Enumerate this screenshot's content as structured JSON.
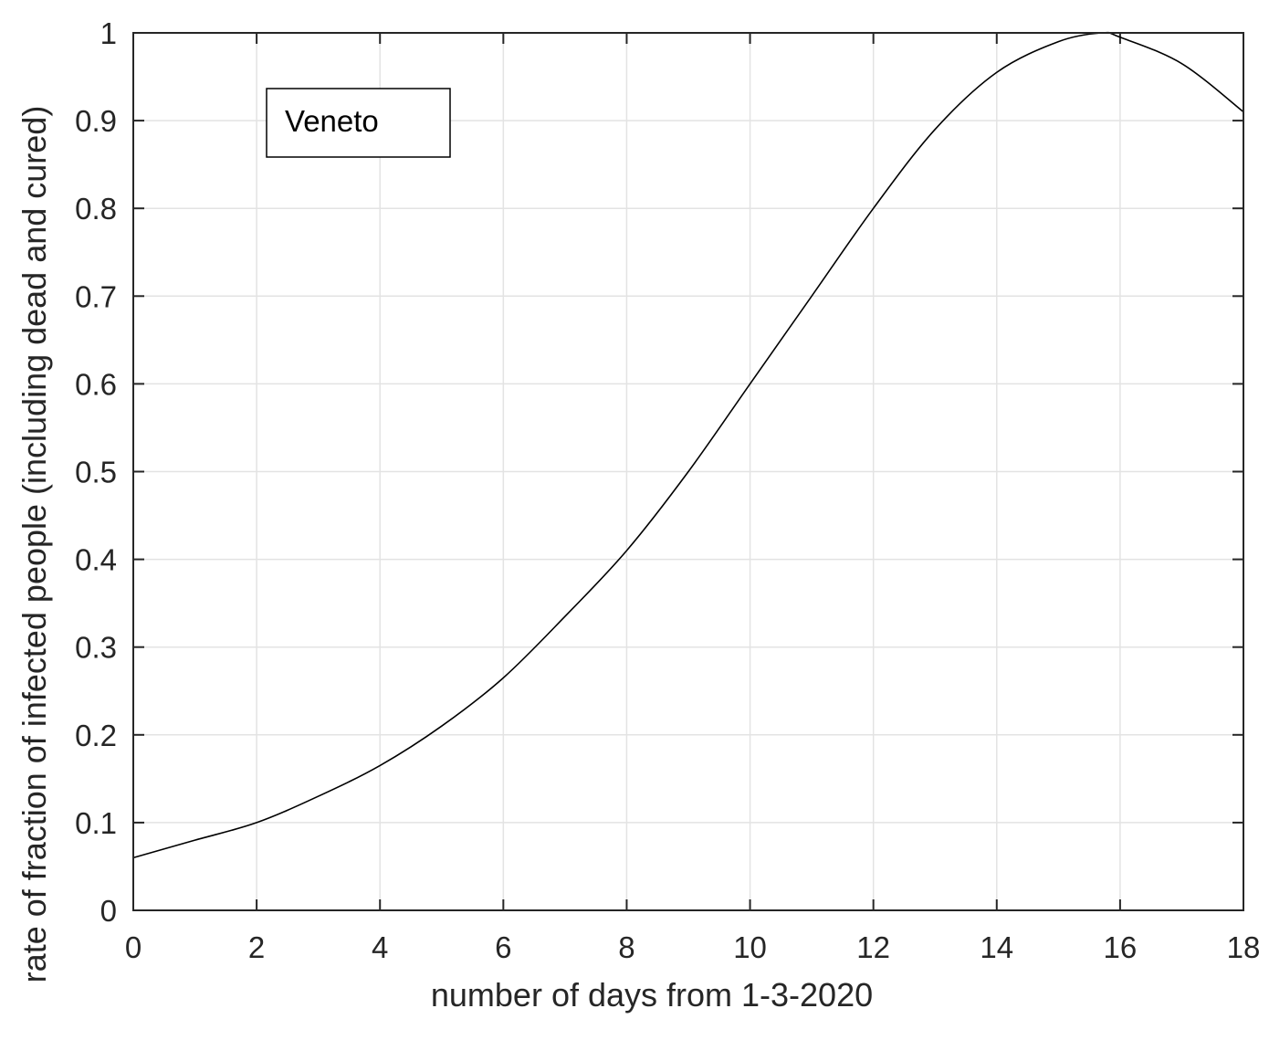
{
  "chart_data": {
    "type": "line",
    "title": "",
    "xlabel": "number of days from 1-3-2020",
    "ylabel": "rate of fraction of infected people (including dead and cured)",
    "xlim": [
      0,
      18
    ],
    "ylim": [
      0,
      1
    ],
    "xticks": [
      0,
      2,
      4,
      6,
      8,
      10,
      12,
      14,
      16,
      18
    ],
    "yticks": [
      0,
      0.1,
      0.2,
      0.3,
      0.4,
      0.5,
      0.6,
      0.7,
      0.8,
      0.9,
      1
    ],
    "xtick_labels": [
      "0",
      "2",
      "4",
      "6",
      "8",
      "10",
      "12",
      "14",
      "16",
      "18"
    ],
    "ytick_labels": [
      "0",
      "0.1",
      "0.2",
      "0.3",
      "0.4",
      "0.5",
      "0.6",
      "0.7",
      "0.8",
      "0.9",
      "1"
    ],
    "grid": true,
    "annotation": "Veneto",
    "annotation_position": "top-left",
    "series": [
      {
        "color": "#000000",
        "x": [
          0,
          1,
          2,
          3,
          4,
          5,
          6,
          7,
          8,
          9,
          10,
          11,
          12,
          13,
          14,
          15,
          15.7,
          16,
          17,
          18
        ],
        "y": [
          0.06,
          0.08,
          0.1,
          0.13,
          0.165,
          0.21,
          0.265,
          0.335,
          0.41,
          0.5,
          0.6,
          0.7,
          0.8,
          0.89,
          0.955,
          0.99,
          1.0,
          0.995,
          0.965,
          0.91
        ]
      }
    ]
  }
}
